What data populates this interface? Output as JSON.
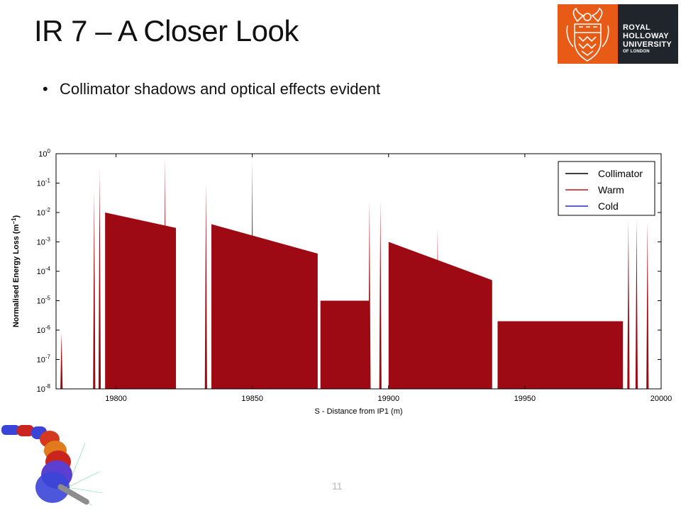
{
  "slide": {
    "title": "IR 7 – A Closer Look",
    "bullet": "Collimator shadows and optical effects evident",
    "page_number": "11"
  },
  "logo": {
    "line1": "ROYAL",
    "line2": "HOLLOWAY",
    "line3": "UNIVERSITY",
    "line4": "OF LONDON",
    "crest_color": "#e85b16",
    "panel_color": "#20242b"
  },
  "chart_data": {
    "type": "area",
    "xlabel": "S - Distance from IP1 (m)",
    "ylabel": "Normalised Energy Loss (m",
    "ylabel_sup": "−1",
    "ylabel_end": ")",
    "xlim": [
      19778,
      20000
    ],
    "ylim_log10": [
      -8,
      0
    ],
    "x_ticks": [
      19800,
      19850,
      19900,
      19950,
      20000
    ],
    "x_tick_labels": [
      "19800",
      "19850",
      "19900",
      "19950",
      "20000"
    ],
    "y_ticks_exp": [
      0,
      -1,
      -2,
      -3,
      -4,
      -5,
      -6,
      -7,
      -8
    ],
    "y_tick_base": "10",
    "legend": {
      "position": "top-right",
      "entries": [
        {
          "name": "Collimator",
          "color": "#000000"
        },
        {
          "name": "Warm",
          "color": "#c0121a"
        },
        {
          "name": "Cold",
          "color": "#1f2bd6"
        }
      ]
    },
    "fill_color": "#9e0a14",
    "warm_segments": [
      {
        "x": [
          19796,
          19822
        ],
        "y_start": 0.01,
        "y_end": 0.003
      },
      {
        "x": [
          19835,
          19874
        ],
        "y_start": 0.004,
        "y_end": 0.0004
      },
      {
        "x": [
          19875,
          19893
        ],
        "y_start": 1e-05,
        "y_end": 1e-05
      },
      {
        "x": [
          19900,
          19938
        ],
        "y_start": 0.001,
        "y_end": 5e-05
      },
      {
        "x": [
          19940,
          19986
        ],
        "y_start": 2e-06,
        "y_end": 2e-06
      }
    ],
    "peaks": [
      {
        "x": 19780,
        "y": 8e-07
      },
      {
        "x": 19792,
        "y": 0.05
      },
      {
        "x": 19794,
        "y": 0.3
      },
      {
        "x": 19818,
        "y": 0.8
      },
      {
        "x": 19833,
        "y": 0.1
      },
      {
        "x": 19850,
        "y": 0.6
      },
      {
        "x": 19893,
        "y": 0.025
      },
      {
        "x": 19897,
        "y": 0.025
      },
      {
        "x": 19918,
        "y": 0.003
      },
      {
        "x": 19988,
        "y": 0.005
      },
      {
        "x": 19991,
        "y": 0.006
      },
      {
        "x": 19995,
        "y": 0.005
      }
    ]
  }
}
